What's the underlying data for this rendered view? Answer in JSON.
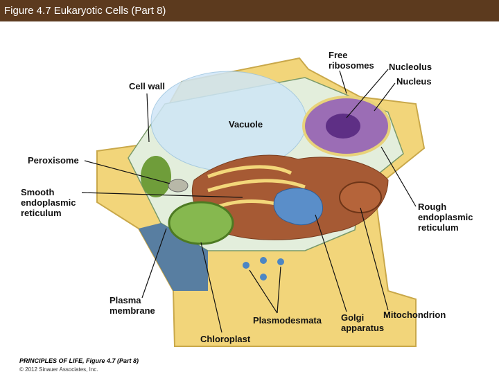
{
  "header": {
    "title": "Figure 4.7  Eukaryotic Cells (Part 8)"
  },
  "labels": [
    {
      "lines": [
        "Free",
        "ribosomes"
      ]
    },
    {
      "lines": [
        "Nucleolus"
      ]
    },
    {
      "lines": [
        "Nucleus"
      ]
    },
    {
      "lines": [
        "Cell wall"
      ]
    },
    {
      "lines": [
        "Vacuole"
      ]
    },
    {
      "lines": [
        "Peroxisome"
      ]
    },
    {
      "lines": [
        "Smooth",
        "endoplasmic",
        "reticulum"
      ]
    },
    {
      "lines": [
        "Rough",
        "endoplasmic",
        "reticulum"
      ]
    },
    {
      "lines": [
        "Plasma",
        "membrane"
      ]
    },
    {
      "lines": [
        "Plasmodesmata"
      ]
    },
    {
      "lines": [
        "Golgi",
        "apparatus"
      ]
    },
    {
      "lines": [
        "Mitochondrion"
      ]
    },
    {
      "lines": [
        "Chloroplast"
      ]
    }
  ],
  "footer": {
    "source": "PRINCIPLES OF LIFE, Figure 4.7 (Part 8)",
    "copyright": "© 2012 Sinauer Associates, Inc."
  }
}
